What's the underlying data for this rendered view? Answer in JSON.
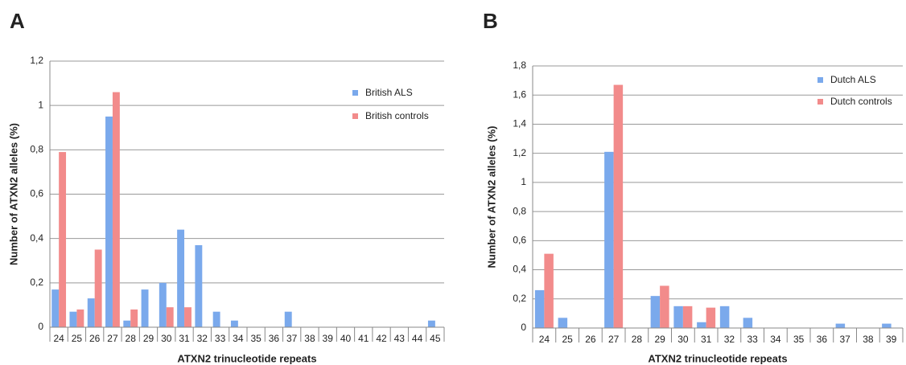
{
  "chart_data": [
    {
      "type": "bar",
      "panel": "A",
      "y_label": "Number of ATXN2 alleles (%)",
      "x_label": "ATXN2 trinucleotide repeats",
      "categories": [
        "24",
        "25",
        "26",
        "27",
        "28",
        "29",
        "30",
        "31",
        "32",
        "33",
        "34",
        "35",
        "36",
        "37",
        "38",
        "39",
        "40",
        "41",
        "42",
        "43",
        "44",
        "45"
      ],
      "series": [
        {
          "name": "British ALS",
          "color": "#7aa9ec",
          "values": [
            0.17,
            0.07,
            0.13,
            0.95,
            0.03,
            0.17,
            0.2,
            0.44,
            0.37,
            0.07,
            0.03,
            0,
            0,
            0.07,
            0,
            0,
            0,
            0,
            0,
            0,
            0,
            0.03
          ]
        },
        {
          "name": "British controls",
          "color": "#f28b8b",
          "values": [
            0.79,
            0.08,
            0.35,
            1.06,
            0.08,
            0,
            0.09,
            0.09,
            0,
            0,
            0,
            0,
            0,
            0,
            0,
            0,
            0,
            0,
            0,
            0,
            0,
            0
          ]
        }
      ],
      "ylim": [
        0,
        1.2
      ],
      "yticks": [
        0,
        {
          "value": 0.2,
          "label": "0,2"
        },
        {
          "value": 0.4,
          "label": "0,4"
        },
        {
          "value": 0.6,
          "label": "0,6"
        },
        {
          "value": 0.8,
          "label": "0,8"
        },
        1,
        {
          "value": 1.2,
          "label": "1,2"
        }
      ],
      "grid": true,
      "legend": "upper right"
    },
    {
      "type": "bar",
      "panel": "B",
      "y_label": "Number of ATXN2 alleles (%)",
      "x_label": "ATXN2 trinucleotide repeats",
      "categories": [
        "24",
        "25",
        "26",
        "27",
        "28",
        "29",
        "30",
        "31",
        "32",
        "33",
        "34",
        "35",
        "36",
        "37",
        "38",
        "39"
      ],
      "series": [
        {
          "name": "Dutch ALS",
          "color": "#7aa9ec",
          "values": [
            0.26,
            0.07,
            0,
            1.21,
            0,
            0.22,
            0.15,
            0.04,
            0.15,
            0.07,
            0,
            0,
            0,
            0.03,
            0,
            0.03
          ]
        },
        {
          "name": "Dutch controls",
          "color": "#f28b8b",
          "values": [
            0.51,
            0,
            0,
            1.67,
            0,
            0.29,
            0.15,
            0.14,
            0,
            0,
            0,
            0,
            0,
            0,
            0,
            0
          ]
        }
      ],
      "ylim": [
        0,
        1.8
      ],
      "yticks": [
        0,
        {
          "value": 0.2,
          "label": "0,2"
        },
        {
          "value": 0.4,
          "label": "0,4"
        },
        {
          "value": 0.6,
          "label": "0,6"
        },
        {
          "value": 0.8,
          "label": "0,8"
        },
        1,
        {
          "value": 1.2,
          "label": "1,2"
        },
        {
          "value": 1.4,
          "label": "1,4"
        },
        {
          "value": 1.6,
          "label": "1,6"
        },
        {
          "value": 1.8,
          "label": "1,8"
        }
      ],
      "grid": true,
      "legend": "upper right"
    }
  ]
}
